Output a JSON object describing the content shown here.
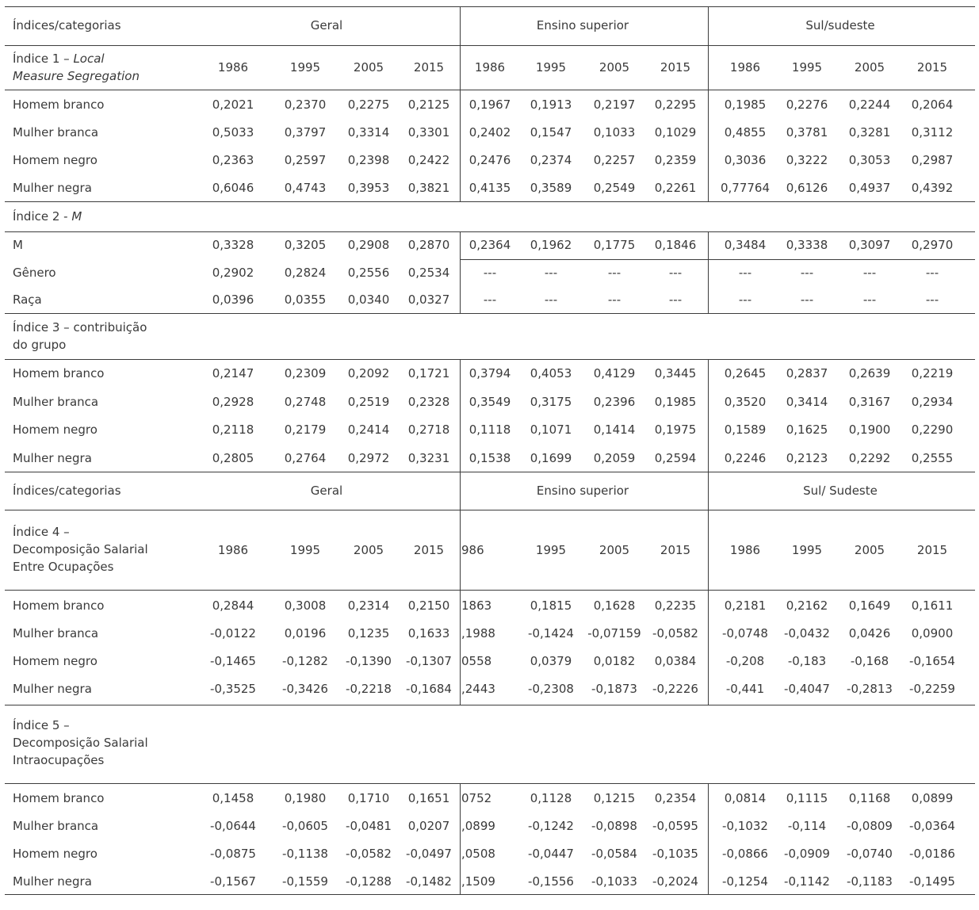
{
  "colors": {
    "text": "#3a3a3a",
    "rule": "#3c3c3c",
    "background": "#ffffff"
  },
  "header1": {
    "label": "Índices/categorias",
    "groups": [
      "Geral",
      "Ensino superior",
      "Sul/sudeste"
    ]
  },
  "header2": {
    "label": "Índices/categorias",
    "groups": [
      "Geral",
      "Ensino superior",
      "Sul/ Sudeste"
    ]
  },
  "blocks": [
    {
      "name": "indice-1",
      "title": {
        "prefix": "Índice 1 – ",
        "italic_line1": "Local",
        "italic_line2": "Measure Segregation"
      },
      "header": {
        "years_g": [
          "1986",
          "1995",
          "2005",
          "2015"
        ],
        "years_e": [
          "1986",
          "1995",
          "2005",
          "2015"
        ],
        "years_s": [
          "1986",
          "1995",
          "2005",
          "2015"
        ]
      },
      "rows": [
        {
          "label": "Homem branco",
          "g": [
            "0,2021",
            "0,2370",
            "0,2275",
            "0,2125"
          ],
          "e": [
            "0,1967",
            "0,1913",
            "0,2197",
            "0,2295"
          ],
          "s": [
            "0,1985",
            "0,2276",
            "0,2244",
            "0,2064"
          ]
        },
        {
          "label": "Mulher branca",
          "g": [
            "0,5033",
            "0,3797",
            "0,3314",
            "0,3301"
          ],
          "e": [
            "0,2402",
            "0,1547",
            "0,1033",
            "0,1029"
          ],
          "s": [
            "0,4855",
            "0,3781",
            "0,3281",
            "0,3112"
          ]
        },
        {
          "label": "Homem negro",
          "g": [
            "0,2363",
            "0,2597",
            "0,2398",
            "0,2422"
          ],
          "e": [
            "0,2476",
            "0,2374",
            "0,2257",
            "0,2359"
          ],
          "s": [
            "0,3036",
            "0,3222",
            "0,3053",
            "0,2987"
          ]
        },
        {
          "label": "Mulher negra",
          "g": [
            "0,6046",
            "0,4743",
            "0,3953",
            "0,3821"
          ],
          "e": [
            "0,4135",
            "0,3589",
            "0,2549",
            "0,2261"
          ],
          "s": [
            "0,77764",
            "0,6126",
            "0,4937",
            "0,4392"
          ]
        }
      ]
    },
    {
      "name": "indice-2",
      "title": {
        "prefix": "Índice 2 - ",
        "italic": "M"
      },
      "rows": [
        {
          "label": "M",
          "g": [
            "0,3328",
            "0,3205",
            "0,2908",
            "0,2870"
          ],
          "e": [
            "0,2364",
            "0,1962",
            "0,1775",
            "0,1846"
          ],
          "s": [
            "0,3484",
            "0,3338",
            "0,3097",
            "0,2970"
          ]
        },
        {
          "label": "Gênero",
          "g": [
            "0,2902",
            "0,2824",
            "0,2556",
            "0,2534"
          ],
          "e": [
            "---",
            "---",
            "---",
            "---"
          ],
          "s": [
            "---",
            "---",
            "---",
            "---"
          ]
        },
        {
          "label": "Raça",
          "g": [
            "0,0396",
            "0,0355",
            "0,0340",
            "0,0327"
          ],
          "e": [
            "---",
            "---",
            "---",
            "---"
          ],
          "s": [
            "---",
            "---",
            "---",
            "---"
          ]
        }
      ]
    },
    {
      "name": "indice-3",
      "title": {
        "lines": [
          "Índice 3 – contribuição",
          "do grupo"
        ]
      },
      "rows": [
        {
          "label": "Homem branco",
          "g": [
            "0,2147",
            "0,2309",
            "0,2092",
            "0,1721"
          ],
          "e": [
            "0,3794",
            "0,4053",
            "0,4129",
            "0,3445"
          ],
          "s": [
            "0,2645",
            "0,2837",
            "0,2639",
            "0,2219"
          ]
        },
        {
          "label": "Mulher branca",
          "g": [
            "0,2928",
            "0,2748",
            "0,2519",
            "0,2328"
          ],
          "e": [
            "0,3549",
            "0,3175",
            "0,2396",
            "0,1985"
          ],
          "s": [
            "0,3520",
            "0,3414",
            "0,3167",
            "0,2934"
          ]
        },
        {
          "label": "Homem negro",
          "g": [
            "0,2118",
            "0,2179",
            "0,2414",
            "0,2718"
          ],
          "e": [
            "0,1118",
            "0,1071",
            "0,1414",
            "0,1975"
          ],
          "s": [
            "0,1589",
            "0,1625",
            "0,1900",
            "0,2290"
          ]
        },
        {
          "label": "Mulher negra",
          "g": [
            "0,2805",
            "0,2764",
            "0,2972",
            "0,3231"
          ],
          "e": [
            "0,1538",
            "0,1699",
            "0,2059",
            "0,2594"
          ],
          "s": [
            "0,2246",
            "0,2123",
            "0,2292",
            "0,2555"
          ]
        }
      ]
    },
    {
      "name": "indice-4",
      "title": {
        "lines": [
          "Índice 4 –",
          "Decomposição Salarial",
          "Entre Ocupações"
        ]
      },
      "header": {
        "years_g": [
          "1986",
          "1995",
          "2005",
          "2015"
        ],
        "years_e": [
          "986",
          "1995",
          "2005",
          "2015"
        ],
        "years_s": [
          "1986",
          "1995",
          "2005",
          "2015"
        ]
      },
      "rows": [
        {
          "label": "Homem branco",
          "g": [
            "0,2844",
            "0,3008",
            "0,2314",
            "0,2150"
          ],
          "e": [
            "1863",
            "0,1815",
            "0,1628",
            "0,2235"
          ],
          "s": [
            "0,2181",
            "0,2162",
            "0,1649",
            "0,1611"
          ]
        },
        {
          "label": "Mulher branca",
          "g": [
            "-0,0122",
            "0,0196",
            "0,1235",
            "0,1633"
          ],
          "e": [
            ",1988",
            "-0,1424",
            "-0,07159",
            "-0,0582"
          ],
          "s": [
            "-0,0748",
            "-0,0432",
            "0,0426",
            "0,0900"
          ]
        },
        {
          "label": "Homem negro",
          "g": [
            "-0,1465",
            "-0,1282",
            "-0,1390",
            "-0,1307"
          ],
          "e": [
            "0558",
            "0,0379",
            "0,0182",
            "0,0384"
          ],
          "s": [
            "-0,208",
            "-0,183",
            "-0,168",
            "-0,1654"
          ]
        },
        {
          "label": "Mulher negra",
          "g": [
            "-0,3525",
            "-0,3426",
            "-0,2218",
            "-0,1684"
          ],
          "e": [
            ",2443",
            "-0,2308",
            "-0,1873",
            "-0,2226"
          ],
          "s": [
            "-0,441",
            "-0,4047",
            "-0,2813",
            "-0,2259"
          ]
        }
      ]
    },
    {
      "name": "indice-5",
      "title": {
        "lines": [
          "Índice 5 –",
          "Decomposição Salarial",
          "Intraocupações"
        ]
      },
      "rows": [
        {
          "label": "Homem branco",
          "g": [
            "0,1458",
            "0,1980",
            "0,1710",
            "0,1651"
          ],
          "e": [
            "0752",
            "0,1128",
            "0,1215",
            "0,2354"
          ],
          "s": [
            "0,0814",
            "0,1115",
            "0,1168",
            "0,0899"
          ]
        },
        {
          "label": "Mulher branca",
          "g": [
            "-0,0644",
            "-0,0605",
            "-0,0481",
            "0,0207"
          ],
          "e": [
            ",0899",
            "-0,1242",
            "-0,0898",
            "-0,0595"
          ],
          "s": [
            "-0,1032",
            "-0,114",
            "-0,0809",
            "-0,0364"
          ]
        },
        {
          "label": "Homem negro",
          "g": [
            "-0,0875",
            "-0,1138",
            "-0,0582",
            "-0,0497"
          ],
          "e": [
            ",0508",
            "-0,0447",
            "-0,0584",
            "-0,1035"
          ],
          "s": [
            "-0,0866",
            "-0,0909",
            "-0,0740",
            "-0,0186"
          ]
        },
        {
          "label": "Mulher negra",
          "g": [
            "-0,1567",
            "-0,1559",
            "-0,1288",
            "-0,1482"
          ],
          "e": [
            ",1509",
            "-0,1556",
            "-0,1033",
            "-0,2024"
          ],
          "s": [
            "-0,1254",
            "-0,1142",
            "-0,1183",
            "-0,1495"
          ]
        }
      ]
    }
  ]
}
